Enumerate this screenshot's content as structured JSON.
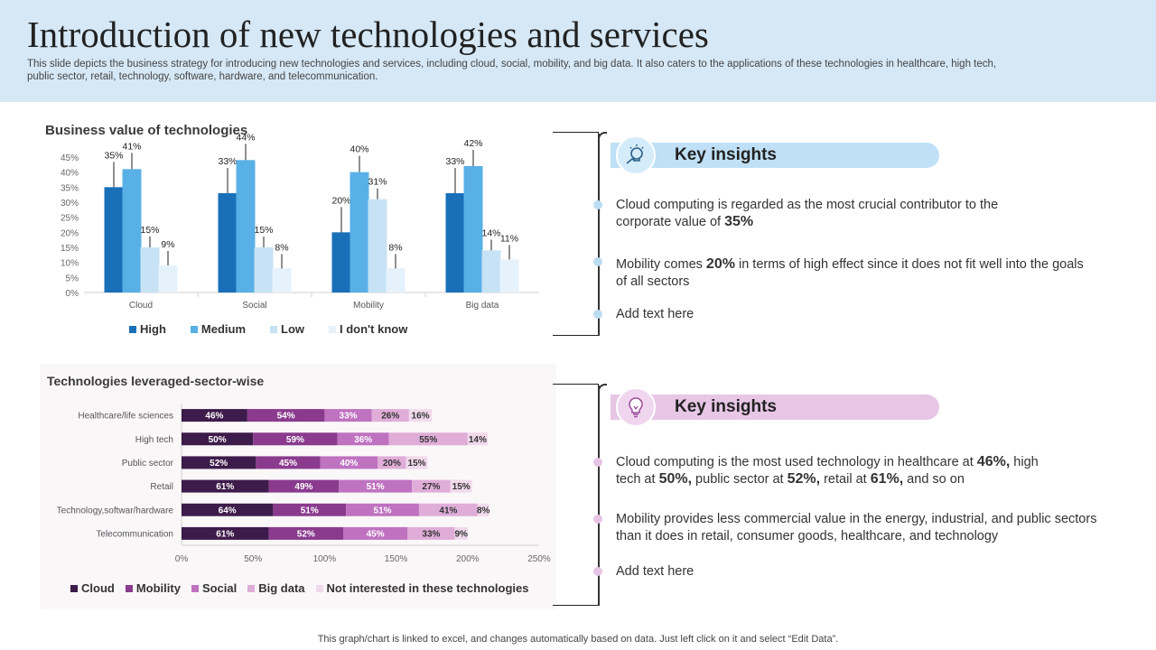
{
  "header": {
    "title": "Introduction of new technologies and services",
    "subtitle": "This slide depicts the business strategy for introducing new technologies and services, including cloud, social, mobility, and big data. It also caters to the applications of these technologies in healthcare, high tech, public sector, retail, technology, software, hardware, and telecommunication."
  },
  "chart_data": [
    {
      "type": "bar",
      "title": "Business value of technologies",
      "categories": [
        "Cloud",
        "Social",
        "Mobility",
        "Big data"
      ],
      "series": [
        {
          "name": "High",
          "values": [
            35,
            33,
            20,
            33
          ],
          "color": "#1a70b8"
        },
        {
          "name": "Medium",
          "values": [
            41,
            44,
            40,
            42
          ],
          "color": "#59b0e6"
        },
        {
          "name": "Low",
          "values": [
            15,
            15,
            31,
            14
          ],
          "color": "#c7e2f5"
        },
        {
          "name": "I don't know",
          "values": [
            9,
            8,
            8,
            11
          ],
          "color": "#e6f2fb"
        }
      ],
      "data_labels": [
        [
          "35%",
          "33%",
          "20%",
          "33%"
        ],
        [
          "41%",
          "44%",
          "40%",
          "42%"
        ],
        [
          "15%",
          "15%",
          "31%",
          "14%"
        ],
        [
          "9%",
          "8%",
          "8%",
          "11%"
        ]
      ],
      "yticks": [
        "0%",
        "5%",
        "10%",
        "15%",
        "20%",
        "25%",
        "30%",
        "35%",
        "40%",
        "45%"
      ],
      "ylim": [
        0,
        45
      ],
      "legend": "bottom"
    },
    {
      "type": "bar",
      "orientation": "horizontal",
      "stacked": true,
      "title": "Technologies leveraged-sector-wise",
      "categories": [
        "Healthcare/life sciences",
        "High tech",
        "Public sector",
        "Retail",
        "Technology,softwar/hardware",
        "Telecommunication"
      ],
      "series": [
        {
          "name": "Cloud",
          "values": [
            46,
            50,
            52,
            61,
            64,
            61
          ],
          "color": "#3d1b4a"
        },
        {
          "name": "Mobility",
          "values": [
            54,
            59,
            45,
            49,
            51,
            52
          ],
          "color": "#8a3b8e"
        },
        {
          "name": "Social",
          "values": [
            33,
            36,
            40,
            51,
            51,
            45
          ],
          "color": "#bf72c0"
        },
        {
          "name": "Big data",
          "values": [
            26,
            55,
            20,
            27,
            41,
            33
          ],
          "color": "#dfadd8"
        },
        {
          "name": "Not interested in these technologies",
          "values": [
            16,
            14,
            15,
            15,
            8,
            9
          ],
          "color": "#f1d9ec"
        }
      ],
      "data_labels": [
        [
          "46%",
          "50%",
          "52%",
          "61%",
          "64%",
          "61%"
        ],
        [
          "54%",
          "59%",
          "45%",
          "49%",
          "51%",
          "52%"
        ],
        [
          "33%",
          "36%",
          "40%",
          "51%",
          "51%",
          "45%"
        ],
        [
          "26%",
          "55%",
          "20%",
          "27%",
          "41%",
          "33%"
        ],
        [
          "16%",
          "14%",
          "15%",
          "15%",
          "8%",
          "9%"
        ]
      ],
      "xticks": [
        "0%",
        "50%",
        "100%",
        "150%",
        "200%",
        "250%"
      ],
      "xlim": [
        0,
        250
      ],
      "legend": "bottom"
    }
  ],
  "insights": [
    {
      "heading": "Key insights",
      "banner_color": "#bfe0f6",
      "circle_color": "#d4ebfa",
      "dot_color": "#bcdcf2",
      "items": [
        {
          "pre": "Cloud computing is regarded as the most crucial contributor to the corporate value of ",
          "bold": "35%",
          "post": ""
        },
        {
          "pre": "Mobility comes ",
          "bold": "20%",
          "post": " in terms of high effect since it does not fit well into the goals of all sectors"
        },
        {
          "pre": "Add text here",
          "bold": "",
          "post": ""
        }
      ]
    },
    {
      "heading": "Key insights",
      "banner_color": "#e7c6e6",
      "circle_color": "#efd6ee",
      "dot_color": "#e6c4e4",
      "items": [
        {
          "t1": "Cloud computing is the most used technology in healthcare at ",
          "b1": "46%,",
          "t2": " high tech at ",
          "b2": "50%,",
          "t3": " public sector at ",
          "b3": "52%,",
          "t4": " retail at ",
          "b4": "61%,",
          "t5": " and so on"
        },
        {
          "pre": "Mobility provides less commercial value in the energy, industrial, and public sectors than it does in retail, consumer goods, healthcare, and technology",
          "bold": "",
          "post": ""
        },
        {
          "pre": "Add text here",
          "bold": "",
          "post": ""
        }
      ]
    }
  ],
  "footer": "This graph/chart is linked to excel,  and changes automatically based on data. Just left click on it and select “Edit Data”."
}
